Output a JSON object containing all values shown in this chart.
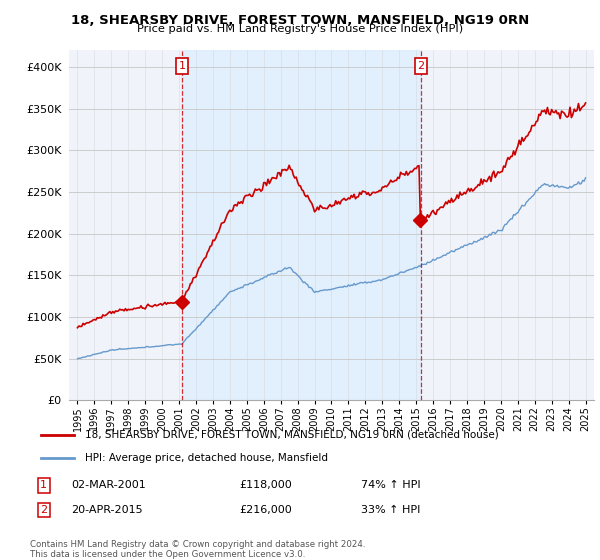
{
  "title1": "18, SHEARSBY DRIVE, FOREST TOWN, MANSFIELD, NG19 0RN",
  "title2": "Price paid vs. HM Land Registry's House Price Index (HPI)",
  "xlim_start": 1994.5,
  "xlim_end": 2025.5,
  "ylim": [
    0,
    420000
  ],
  "yticks": [
    0,
    50000,
    100000,
    150000,
    200000,
    250000,
    300000,
    350000,
    400000
  ],
  "ytick_labels": [
    "£0",
    "£50K",
    "£100K",
    "£150K",
    "£200K",
    "£250K",
    "£300K",
    "£350K",
    "£400K"
  ],
  "transaction1_date": 2001.17,
  "transaction1_price": 118000,
  "transaction2_date": 2015.29,
  "transaction2_price": 216000,
  "line_color_red": "#cc0000",
  "line_color_blue": "#6699cc",
  "shade_color": "#ddeeff",
  "bg_color": "#f0f4fa",
  "grid_color": "#cccccc",
  "legend_label_red": "18, SHEARSBY DRIVE, FOREST TOWN, MANSFIELD, NG19 0RN (detached house)",
  "legend_label_blue": "HPI: Average price, detached house, Mansfield",
  "annotation1_date": "02-MAR-2001",
  "annotation1_price": "£118,000",
  "annotation1_change": "74% ↑ HPI",
  "annotation2_date": "20-APR-2015",
  "annotation2_price": "£216,000",
  "annotation2_change": "33% ↑ HPI",
  "footer": "Contains HM Land Registry data © Crown copyright and database right 2024.\nThis data is licensed under the Open Government Licence v3.0.",
  "xticks": [
    1995,
    1996,
    1997,
    1998,
    1999,
    2000,
    2001,
    2002,
    2003,
    2004,
    2005,
    2006,
    2007,
    2008,
    2009,
    2010,
    2011,
    2012,
    2013,
    2014,
    2015,
    2016,
    2017,
    2018,
    2019,
    2020,
    2021,
    2022,
    2023,
    2024,
    2025
  ]
}
